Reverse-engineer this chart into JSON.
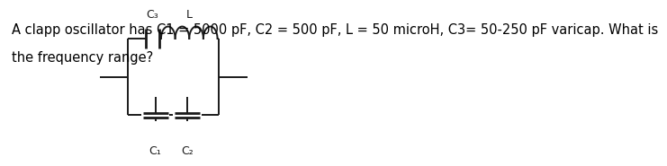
{
  "text_line1": "A clapp oscillator has C1 = 5000 pF, C2 = 500 pF, L = 50 microH, C3= 50-250 pF varicap. What is",
  "text_line2": "the frequency range?",
  "text_fontsize": 10.5,
  "text_color": "#000000",
  "bg_color": "#ffffff",
  "label_C3": "C₃",
  "label_L": "L",
  "label_C1": "C₁",
  "label_C2": "C₂",
  "lw": 1.4,
  "color": "#1a1a1a"
}
